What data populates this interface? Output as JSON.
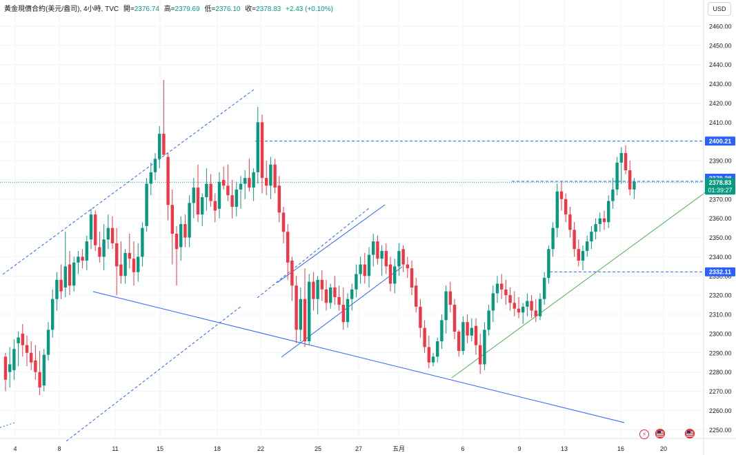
{
  "header": {
    "symbol": "黃金現價合約(美元/盎司), 4小時, TVC",
    "open_label": "開=",
    "open": "2376.74",
    "high_label": "高=",
    "high": "2379.69",
    "low_label": "低=",
    "low": "2376.10",
    "close_label": "收=",
    "close": "2378.83",
    "change": "+2.43 (+0.10%)"
  },
  "currency": "USD",
  "colors": {
    "up": "#089981",
    "down": "#f23645",
    "trendline_blue": "#2962ff",
    "trendline_green": "#4caf50",
    "grid": "#f0f3fa"
  },
  "price_axis_labels": [
    "2460.00",
    "2450.00",
    "2440.00",
    "2430.00",
    "2420.00",
    "2410.00",
    "2400.00",
    "2390.00",
    "2380.00",
    "2370.00",
    "2360.00",
    "2350.00",
    "2340.00",
    "2330.00",
    "2320.00",
    "2310.00",
    "2300.00",
    "2290.00",
    "2280.00",
    "2270.00",
    "2260.00",
    "2250.00"
  ],
  "price_badges": {
    "resistance": "2400.21",
    "prior_high": "2379.28",
    "last_price": "2378.83",
    "countdown": "01:39:27",
    "support": "2332.11"
  },
  "icons": [
    "lightning-event-icon",
    "us-flag-icon",
    "us-flag-icon"
  ],
  "chart_data": {
    "type": "candlestick",
    "interval": "4h",
    "x_tick_labels": [
      "4",
      "8",
      "11",
      "15",
      "18",
      "22",
      "25",
      "27",
      "五月",
      "6",
      "9",
      "13",
      "16",
      "20"
    ],
    "ylim": [
      2246,
      2470
    ],
    "grid": true,
    "candles_ohlc": [
      [
        2288,
        2290,
        2270,
        2276
      ],
      [
        2280,
        2293,
        2272,
        2284
      ],
      [
        2281,
        2297,
        2276,
        2292
      ],
      [
        2295,
        2301,
        2283,
        2298
      ],
      [
        2300,
        2305,
        2288,
        2294
      ],
      [
        2294,
        2299,
        2283,
        2290
      ],
      [
        2290,
        2296,
        2281,
        2285
      ],
      [
        2286,
        2294,
        2276,
        2280
      ],
      [
        2280,
        2291,
        2268,
        2272
      ],
      [
        2273,
        2292,
        2270,
        2289
      ],
      [
        2289,
        2306,
        2286,
        2302
      ],
      [
        2302,
        2323,
        2298,
        2318
      ],
      [
        2318,
        2332,
        2312,
        2328
      ],
      [
        2328,
        2336,
        2318,
        2322
      ],
      [
        2324,
        2353,
        2319,
        2335
      ],
      [
        2336,
        2343,
        2320,
        2325
      ],
      [
        2325,
        2340,
        2322,
        2337
      ],
      [
        2337,
        2343,
        2331,
        2340
      ],
      [
        2340,
        2344,
        2334,
        2338
      ],
      [
        2338,
        2351,
        2333,
        2348
      ],
      [
        2349,
        2365,
        2344,
        2362
      ],
      [
        2362,
        2364,
        2343,
        2346
      ],
      [
        2345,
        2353,
        2337,
        2340
      ],
      [
        2340,
        2357,
        2333,
        2349
      ],
      [
        2349,
        2362,
        2344,
        2355
      ],
      [
        2355,
        2361,
        2344,
        2347
      ],
      [
        2347,
        2355,
        2320,
        2335
      ],
      [
        2336,
        2348,
        2326,
        2330
      ],
      [
        2330,
        2344,
        2326,
        2342
      ],
      [
        2342,
        2352,
        2334,
        2339
      ],
      [
        2339,
        2348,
        2325,
        2332
      ],
      [
        2332,
        2347,
        2327,
        2340
      ],
      [
        2340,
        2358,
        2335,
        2355
      ],
      [
        2356,
        2381,
        2353,
        2378
      ],
      [
        2378,
        2389,
        2372,
        2384
      ],
      [
        2384,
        2394,
        2380,
        2391
      ],
      [
        2391,
        2408,
        2386,
        2404
      ],
      [
        2404,
        2432,
        2398,
        2393
      ],
      [
        2392,
        2394,
        2359,
        2367
      ],
      [
        2367,
        2375,
        2336,
        2352
      ],
      [
        2352,
        2356,
        2325,
        2344
      ],
      [
        2345,
        2361,
        2338,
        2357
      ],
      [
        2357,
        2362,
        2345,
        2350
      ],
      [
        2350,
        2372,
        2345,
        2368
      ],
      [
        2368,
        2381,
        2360,
        2376
      ],
      [
        2376,
        2388,
        2358,
        2362
      ],
      [
        2362,
        2373,
        2356,
        2371
      ],
      [
        2371,
        2386,
        2364,
        2378
      ],
      [
        2378,
        2383,
        2366,
        2369
      ],
      [
        2369,
        2373,
        2358,
        2364
      ],
      [
        2365,
        2384,
        2360,
        2379
      ],
      [
        2380,
        2387,
        2375,
        2377
      ],
      [
        2377,
        2388,
        2369,
        2372
      ],
      [
        2372,
        2380,
        2360,
        2366
      ],
      [
        2366,
        2379,
        2361,
        2375
      ],
      [
        2375,
        2382,
        2365,
        2378
      ],
      [
        2378,
        2385,
        2370,
        2381
      ],
      [
        2381,
        2391,
        2374,
        2376
      ],
      [
        2376,
        2386,
        2369,
        2384
      ],
      [
        2384,
        2418,
        2378,
        2410
      ],
      [
        2410,
        2414,
        2373,
        2381
      ],
      [
        2381,
        2390,
        2372,
        2377
      ],
      [
        2377,
        2392,
        2370,
        2388
      ],
      [
        2388,
        2391,
        2373,
        2376
      ],
      [
        2377,
        2382,
        2358,
        2363
      ],
      [
        2363,
        2366,
        2347,
        2353
      ],
      [
        2353,
        2357,
        2328,
        2337
      ],
      [
        2338,
        2340,
        2317,
        2325
      ],
      [
        2325,
        2330,
        2295,
        2302
      ],
      [
        2302,
        2324,
        2296,
        2318
      ],
      [
        2318,
        2334,
        2293,
        2296
      ],
      [
        2296,
        2331,
        2294,
        2327
      ],
      [
        2327,
        2332,
        2312,
        2318
      ],
      [
        2318,
        2330,
        2310,
        2328
      ],
      [
        2328,
        2333,
        2317,
        2323
      ],
      [
        2323,
        2328,
        2312,
        2316
      ],
      [
        2316,
        2326,
        2313,
        2324
      ],
      [
        2324,
        2330,
        2315,
        2319
      ],
      [
        2319,
        2325,
        2312,
        2315
      ],
      [
        2315,
        2324,
        2302,
        2306
      ],
      [
        2306,
        2321,
        2303,
        2318
      ],
      [
        2318,
        2326,
        2312,
        2323
      ],
      [
        2323,
        2336,
        2319,
        2331
      ],
      [
        2331,
        2340,
        2326,
        2336
      ],
      [
        2336,
        2342,
        2326,
        2330
      ],
      [
        2330,
        2345,
        2324,
        2341
      ],
      [
        2341,
        2352,
        2335,
        2348
      ],
      [
        2348,
        2351,
        2336,
        2339
      ],
      [
        2339,
        2346,
        2330,
        2343
      ],
      [
        2343,
        2347,
        2331,
        2335
      ],
      [
        2336,
        2340,
        2322,
        2326
      ],
      [
        2326,
        2339,
        2321,
        2335
      ],
      [
        2335,
        2347,
        2330,
        2343
      ],
      [
        2344,
        2346,
        2332,
        2336
      ],
      [
        2336,
        2340,
        2329,
        2334
      ],
      [
        2334,
        2338,
        2320,
        2324
      ],
      [
        2325,
        2329,
        2311,
        2314
      ],
      [
        2314,
        2318,
        2298,
        2303
      ],
      [
        2303,
        2307,
        2290,
        2293
      ],
      [
        2293,
        2299,
        2282,
        2285
      ],
      [
        2285,
        2290,
        2283,
        2288
      ],
      [
        2288,
        2298,
        2285,
        2296
      ],
      [
        2296,
        2310,
        2292,
        2307
      ],
      [
        2307,
        2325,
        2300,
        2322
      ],
      [
        2322,
        2327,
        2311,
        2315
      ],
      [
        2315,
        2318,
        2297,
        2301
      ],
      [
        2301,
        2302,
        2288,
        2291
      ],
      [
        2291,
        2309,
        2289,
        2306
      ],
      [
        2306,
        2310,
        2295,
        2299
      ],
      [
        2299,
        2308,
        2296,
        2303
      ],
      [
        2304,
        2308,
        2289,
        2294
      ],
      [
        2294,
        2300,
        2279,
        2284
      ],
      [
        2284,
        2306,
        2281,
        2302
      ],
      [
        2302,
        2315,
        2299,
        2312
      ],
      [
        2312,
        2325,
        2306,
        2321
      ],
      [
        2321,
        2330,
        2316,
        2326
      ],
      [
        2326,
        2331,
        2318,
        2323
      ],
      [
        2323,
        2328,
        2315,
        2320
      ],
      [
        2320,
        2324,
        2312,
        2316
      ],
      [
        2316,
        2322,
        2309,
        2313
      ],
      [
        2313,
        2319,
        2308,
        2311
      ],
      [
        2311,
        2316,
        2305,
        2314
      ],
      [
        2314,
        2321,
        2309,
        2317
      ],
      [
        2317,
        2320,
        2308,
        2312
      ],
      [
        2312,
        2318,
        2306,
        2309
      ],
      [
        2309,
        2321,
        2307,
        2318
      ],
      [
        2318,
        2332,
        2315,
        2329
      ],
      [
        2329,
        2346,
        2326,
        2344
      ],
      [
        2344,
        2358,
        2340,
        2355
      ],
      [
        2355,
        2378,
        2350,
        2374
      ],
      [
        2374,
        2379,
        2364,
        2370
      ],
      [
        2370,
        2373,
        2358,
        2362
      ],
      [
        2362,
        2366,
        2350,
        2354
      ],
      [
        2354,
        2358,
        2340,
        2344
      ],
      [
        2344,
        2349,
        2335,
        2338
      ],
      [
        2338,
        2346,
        2333,
        2343
      ],
      [
        2343,
        2351,
        2340,
        2348
      ],
      [
        2348,
        2356,
        2344,
        2353
      ],
      [
        2353,
        2360,
        2349,
        2357
      ],
      [
        2357,
        2363,
        2353,
        2360
      ],
      [
        2360,
        2364,
        2354,
        2358
      ],
      [
        2358,
        2372,
        2355,
        2369
      ],
      [
        2369,
        2381,
        2365,
        2375
      ],
      [
        2375,
        2392,
        2372,
        2389
      ],
      [
        2389,
        2397,
        2378,
        2394
      ],
      [
        2394,
        2398,
        2383,
        2385
      ],
      [
        2385,
        2390,
        2372,
        2375
      ],
      [
        2375,
        2381,
        2370,
        2379
      ]
    ],
    "horizontal_levels": [
      {
        "price": 2400.21,
        "style": "dashed"
      },
      {
        "price": 2379.28,
        "style": "dashed"
      },
      {
        "price": 2378.83,
        "style": "dotted",
        "color": "#089981"
      },
      {
        "price": 2332.11,
        "style": "dashed"
      }
    ]
  }
}
